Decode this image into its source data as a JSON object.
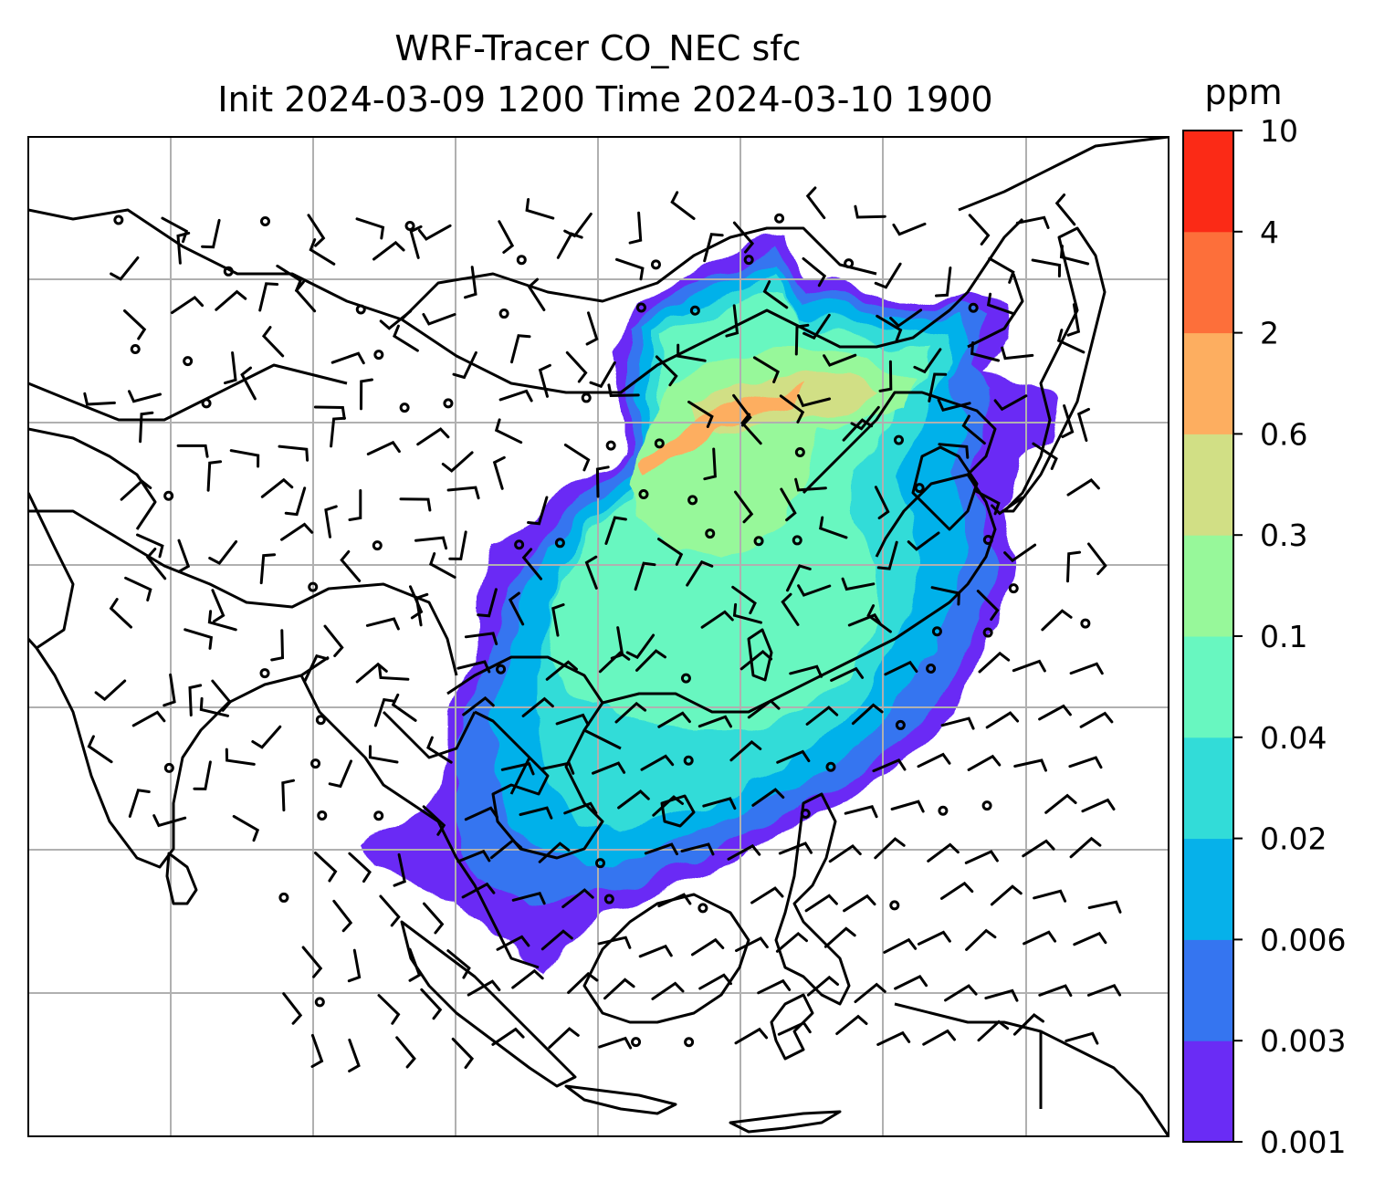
{
  "figure": {
    "title_line1": "WRF-Tracer CO_NEC sfc",
    "title_line2": "Init 2024-03-09 1200 Time 2024-03-10 1900"
  },
  "colorbar": {
    "unit": "ppm",
    "ticks": [
      "0.001",
      "0.003",
      "0.006",
      "0.02",
      "0.04",
      "0.1",
      "0.3",
      "0.6",
      "2",
      "4",
      "10"
    ],
    "colors": [
      "#6a2cf5",
      "#3575f0",
      "#06b1ea",
      "#32dcd8",
      "#68f7c0",
      "#97f89a",
      "#d1df85",
      "#fdae60",
      "#fd6f3a",
      "#fb2a16"
    ]
  },
  "map": {
    "field": "CO_NEC surface concentration",
    "level": "sfc",
    "gridlines": true,
    "land_outline_color": "#000000",
    "grid_color": "#b0b0b0"
  }
}
